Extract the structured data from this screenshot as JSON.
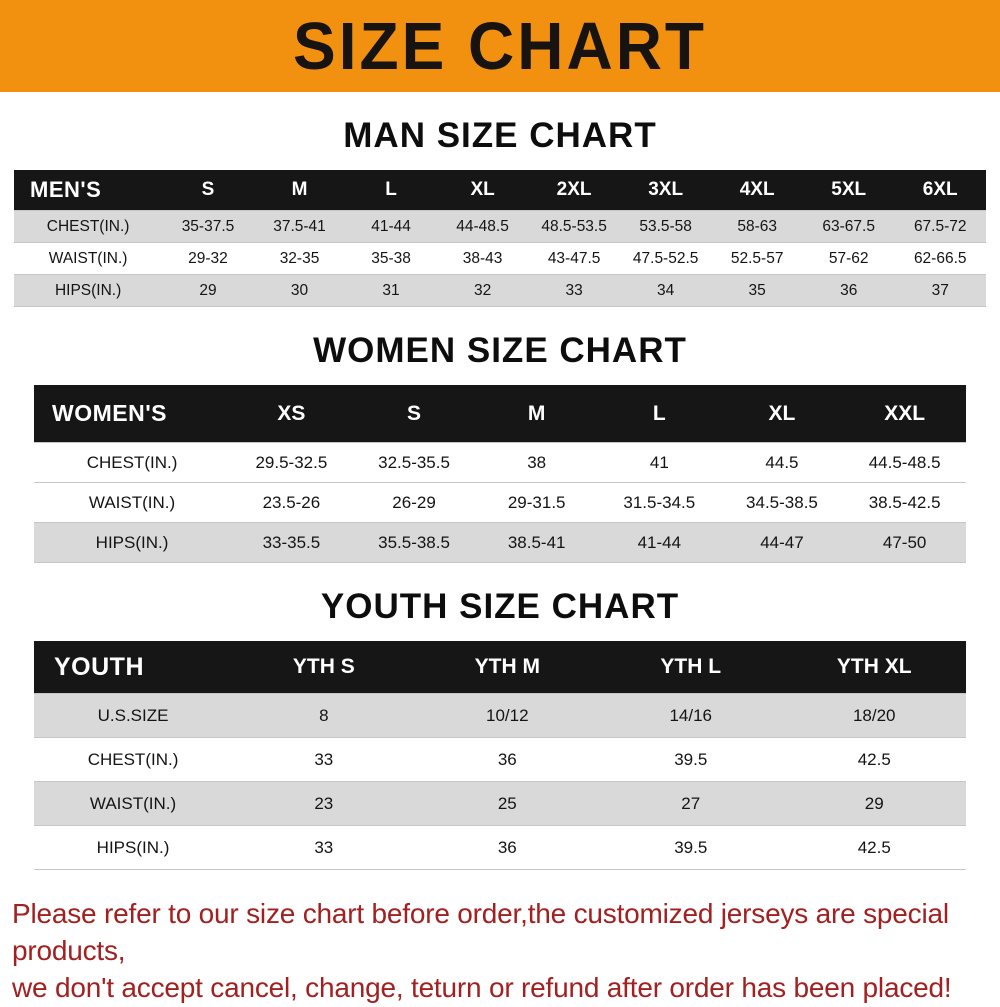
{
  "banner": {
    "title": "SIZE CHART",
    "bg_color": "#f2900f",
    "text_color": "#171310"
  },
  "sections": [
    {
      "heading": "MAN SIZE CHART",
      "table": {
        "header": [
          "MEN'S",
          "S",
          "M",
          "L",
          "XL",
          "2XL",
          "3XL",
          "4XL",
          "5XL",
          "6XL"
        ],
        "rows": [
          {
            "label": "CHEST(IN.)",
            "values": [
              "35-37.5",
              "37.5-41",
              "41-44",
              "44-48.5",
              "48.5-53.5",
              "53.5-58",
              "58-63",
              "63-67.5",
              "67.5-72"
            ]
          },
          {
            "label": "WAIST(IN.)",
            "values": [
              "29-32",
              "32-35",
              "35-38",
              "38-43",
              "43-47.5",
              "47.5-52.5",
              "52.5-57",
              "57-62",
              "62-66.5"
            ]
          },
          {
            "label": "HIPS(IN.)",
            "values": [
              "29",
              "30",
              "31",
              "32",
              "33",
              "34",
              "35",
              "36",
              "37"
            ]
          }
        ]
      }
    },
    {
      "heading": "WOMEN SIZE CHART",
      "table": {
        "header": [
          "WOMEN'S",
          "XS",
          "S",
          "M",
          "L",
          "XL",
          "XXL"
        ],
        "rows": [
          {
            "label": "CHEST(IN.)",
            "values": [
              "29.5-32.5",
              "32.5-35.5",
              "38",
              "41",
              "44.5",
              "44.5-48.5"
            ]
          },
          {
            "label": "WAIST(IN.)",
            "values": [
              "23.5-26",
              "26-29",
              "29-31.5",
              "31.5-34.5",
              "34.5-38.5",
              "38.5-42.5"
            ]
          },
          {
            "label": "HIPS(IN.)",
            "values": [
              "33-35.5",
              "35.5-38.5",
              "38.5-41",
              "41-44",
              "44-47",
              "47-50"
            ]
          }
        ]
      }
    },
    {
      "heading": "YOUTH SIZE CHART",
      "table": {
        "header": [
          "YOUTH",
          "YTH S",
          "YTH M",
          "YTH L",
          "YTH XL"
        ],
        "rows": [
          {
            "label": "U.S.SIZE",
            "values": [
              "8",
              "10/12",
              "14/16",
              "18/20"
            ]
          },
          {
            "label": "CHEST(IN.)",
            "values": [
              "33",
              "36",
              "39.5",
              "42.5"
            ]
          },
          {
            "label": "WAIST(IN.)",
            "values": [
              "23",
              "25",
              "27",
              "29"
            ]
          },
          {
            "label": "HIPS(IN.)",
            "values": [
              "33",
              "36",
              "39.5",
              "42.5"
            ]
          }
        ]
      }
    }
  ],
  "disclaimer": {
    "line1": "Please refer to our size chart before order,the customized jerseys are special products,",
    "line2": "we don't accept cancel, change, teturn or refund after order has been placed!",
    "color": "#a32020"
  },
  "chart_data": [
    {
      "type": "table",
      "title": "MAN SIZE CHART",
      "columns": [
        "MEN'S",
        "S",
        "M",
        "L",
        "XL",
        "2XL",
        "3XL",
        "4XL",
        "5XL",
        "6XL"
      ],
      "rows": [
        [
          "CHEST(IN.)",
          "35-37.5",
          "37.5-41",
          "41-44",
          "44-48.5",
          "48.5-53.5",
          "53.5-58",
          "58-63",
          "63-67.5",
          "67.5-72"
        ],
        [
          "WAIST(IN.)",
          "29-32",
          "32-35",
          "35-38",
          "38-43",
          "43-47.5",
          "47.5-52.5",
          "52.5-57",
          "57-62",
          "62-66.5"
        ],
        [
          "HIPS(IN.)",
          "29",
          "30",
          "31",
          "32",
          "33",
          "34",
          "35",
          "36",
          "37"
        ]
      ]
    },
    {
      "type": "table",
      "title": "WOMEN SIZE CHART",
      "columns": [
        "WOMEN'S",
        "XS",
        "S",
        "M",
        "L",
        "XL",
        "XXL"
      ],
      "rows": [
        [
          "CHEST(IN.)",
          "29.5-32.5",
          "32.5-35.5",
          "38",
          "41",
          "44.5",
          "44.5-48.5"
        ],
        [
          "WAIST(IN.)",
          "23.5-26",
          "26-29",
          "29-31.5",
          "31.5-34.5",
          "34.5-38.5",
          "38.5-42.5"
        ],
        [
          "HIPS(IN.)",
          "33-35.5",
          "35.5-38.5",
          "38.5-41",
          "41-44",
          "44-47",
          "47-50"
        ]
      ]
    },
    {
      "type": "table",
      "title": "YOUTH SIZE CHART",
      "columns": [
        "YOUTH",
        "YTH S",
        "YTH M",
        "YTH L",
        "YTH XL"
      ],
      "rows": [
        [
          "U.S.SIZE",
          "8",
          "10/12",
          "14/16",
          "18/20"
        ],
        [
          "CHEST(IN.)",
          "33",
          "36",
          "39.5",
          "42.5"
        ],
        [
          "WAIST(IN.)",
          "23",
          "25",
          "27",
          "29"
        ],
        [
          "HIPS(IN.)",
          "33",
          "36",
          "39.5",
          "42.5"
        ]
      ]
    }
  ]
}
